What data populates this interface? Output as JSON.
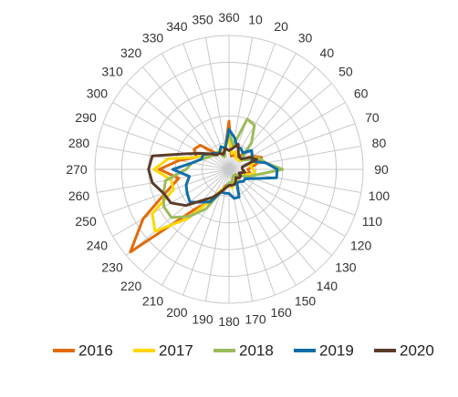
{
  "chart_data": {
    "type": "radar",
    "title": "",
    "axis": {
      "directions_deg": [
        0,
        10,
        20,
        30,
        40,
        50,
        60,
        70,
        80,
        90,
        100,
        110,
        120,
        130,
        140,
        150,
        160,
        170,
        180,
        190,
        200,
        210,
        220,
        230,
        240,
        250,
        260,
        270,
        280,
        290,
        300,
        310,
        320,
        330,
        340,
        350
      ],
      "tick_labels": [
        "360",
        "10",
        "20",
        "30",
        "40",
        "50",
        "60",
        "70",
        "80",
        "90",
        "100",
        "110",
        "120",
        "130",
        "140",
        "150",
        "160",
        "170",
        "180",
        "190",
        "200",
        "210",
        "220",
        "230",
        "240",
        "250",
        "260",
        "270",
        "280",
        "290",
        "300",
        "310",
        "320",
        "330",
        "340",
        "350"
      ],
      "rmax": 5,
      "rings": [
        1,
        2,
        3,
        4,
        5
      ],
      "radial_labels_shown": false,
      "grid": true
    },
    "legend": {
      "placement": "bottom"
    },
    "series": [
      {
        "name": "2016",
        "color": "#E26B0A",
        "values": [
          1.8,
          0.5,
          0.6,
          0.5,
          0.7,
          0.5,
          1.0,
          1.3,
          1.0,
          0.7,
          0.8,
          0.5,
          0.5,
          0.3,
          0.3,
          0.3,
          0.4,
          0.6,
          0.6,
          0.6,
          0.9,
          1.4,
          1.9,
          4.8,
          3.7,
          2.5,
          1.9,
          2.6,
          1.9,
          1.3,
          1.5,
          1.4,
          0.8,
          0.7,
          0.6,
          0.8
        ]
      },
      {
        "name": "2017",
        "color": "#FFD700",
        "values": [
          1.2,
          0.6,
          0.7,
          0.5,
          0.5,
          0.5,
          0.9,
          1.2,
          0.8,
          0.9,
          1.0,
          0.6,
          0.5,
          0.4,
          0.5,
          0.4,
          0.4,
          0.7,
          0.6,
          0.7,
          0.8,
          1.3,
          2.4,
          3.6,
          3.3,
          2.2,
          2.2,
          2.8,
          2.3,
          1.3,
          1.1,
          0.8,
          0.7,
          0.8,
          0.6,
          0.9
        ]
      },
      {
        "name": "2018",
        "color": "#9BBB59",
        "values": [
          1.4,
          0.9,
          2.0,
          1.9,
          1.3,
          0.6,
          0.7,
          1.2,
          1.4,
          2.0,
          1.1,
          0.8,
          0.5,
          0.3,
          0.3,
          0.3,
          0.4,
          0.5,
          0.5,
          0.7,
          0.9,
          1.7,
          2.3,
          2.8,
          2.8,
          2.6,
          2.4,
          1.6,
          1.4,
          1.1,
          0.9,
          0.8,
          0.7,
          0.7,
          0.5,
          0.8
        ]
      },
      {
        "name": "2019",
        "color": "#0E6DA8",
        "values": [
          1.5,
          1.2,
          0.9,
          0.9,
          0.8,
          1.1,
          1.0,
          0.9,
          1.4,
          1.8,
          1.8,
          1.0,
          0.7,
          0.7,
          0.6,
          0.6,
          1.1,
          1.1,
          0.9,
          0.9,
          0.9,
          1.4,
          1.6,
          1.9,
          1.8,
          1.7,
          1.5,
          2.1,
          1.4,
          1.1,
          1.1,
          0.9,
          0.8,
          0.7,
          0.9,
          0.8
        ]
      },
      {
        "name": "2020",
        "color": "#5A3B29",
        "values": [
          0.7,
          0.8,
          1.0,
          0.7,
          0.6,
          0.6,
          0.9,
          1.1,
          0.5,
          0.5,
          0.6,
          0.4,
          0.5,
          0.5,
          0.4,
          0.5,
          0.6,
          0.6,
          0.6,
          0.7,
          0.9,
          1.2,
          1.5,
          2.1,
          2.5,
          2.6,
          2.9,
          3.0,
          2.9,
          1.7,
          1.2,
          0.9,
          0.7,
          0.7,
          0.6,
          0.8
        ]
      }
    ]
  }
}
